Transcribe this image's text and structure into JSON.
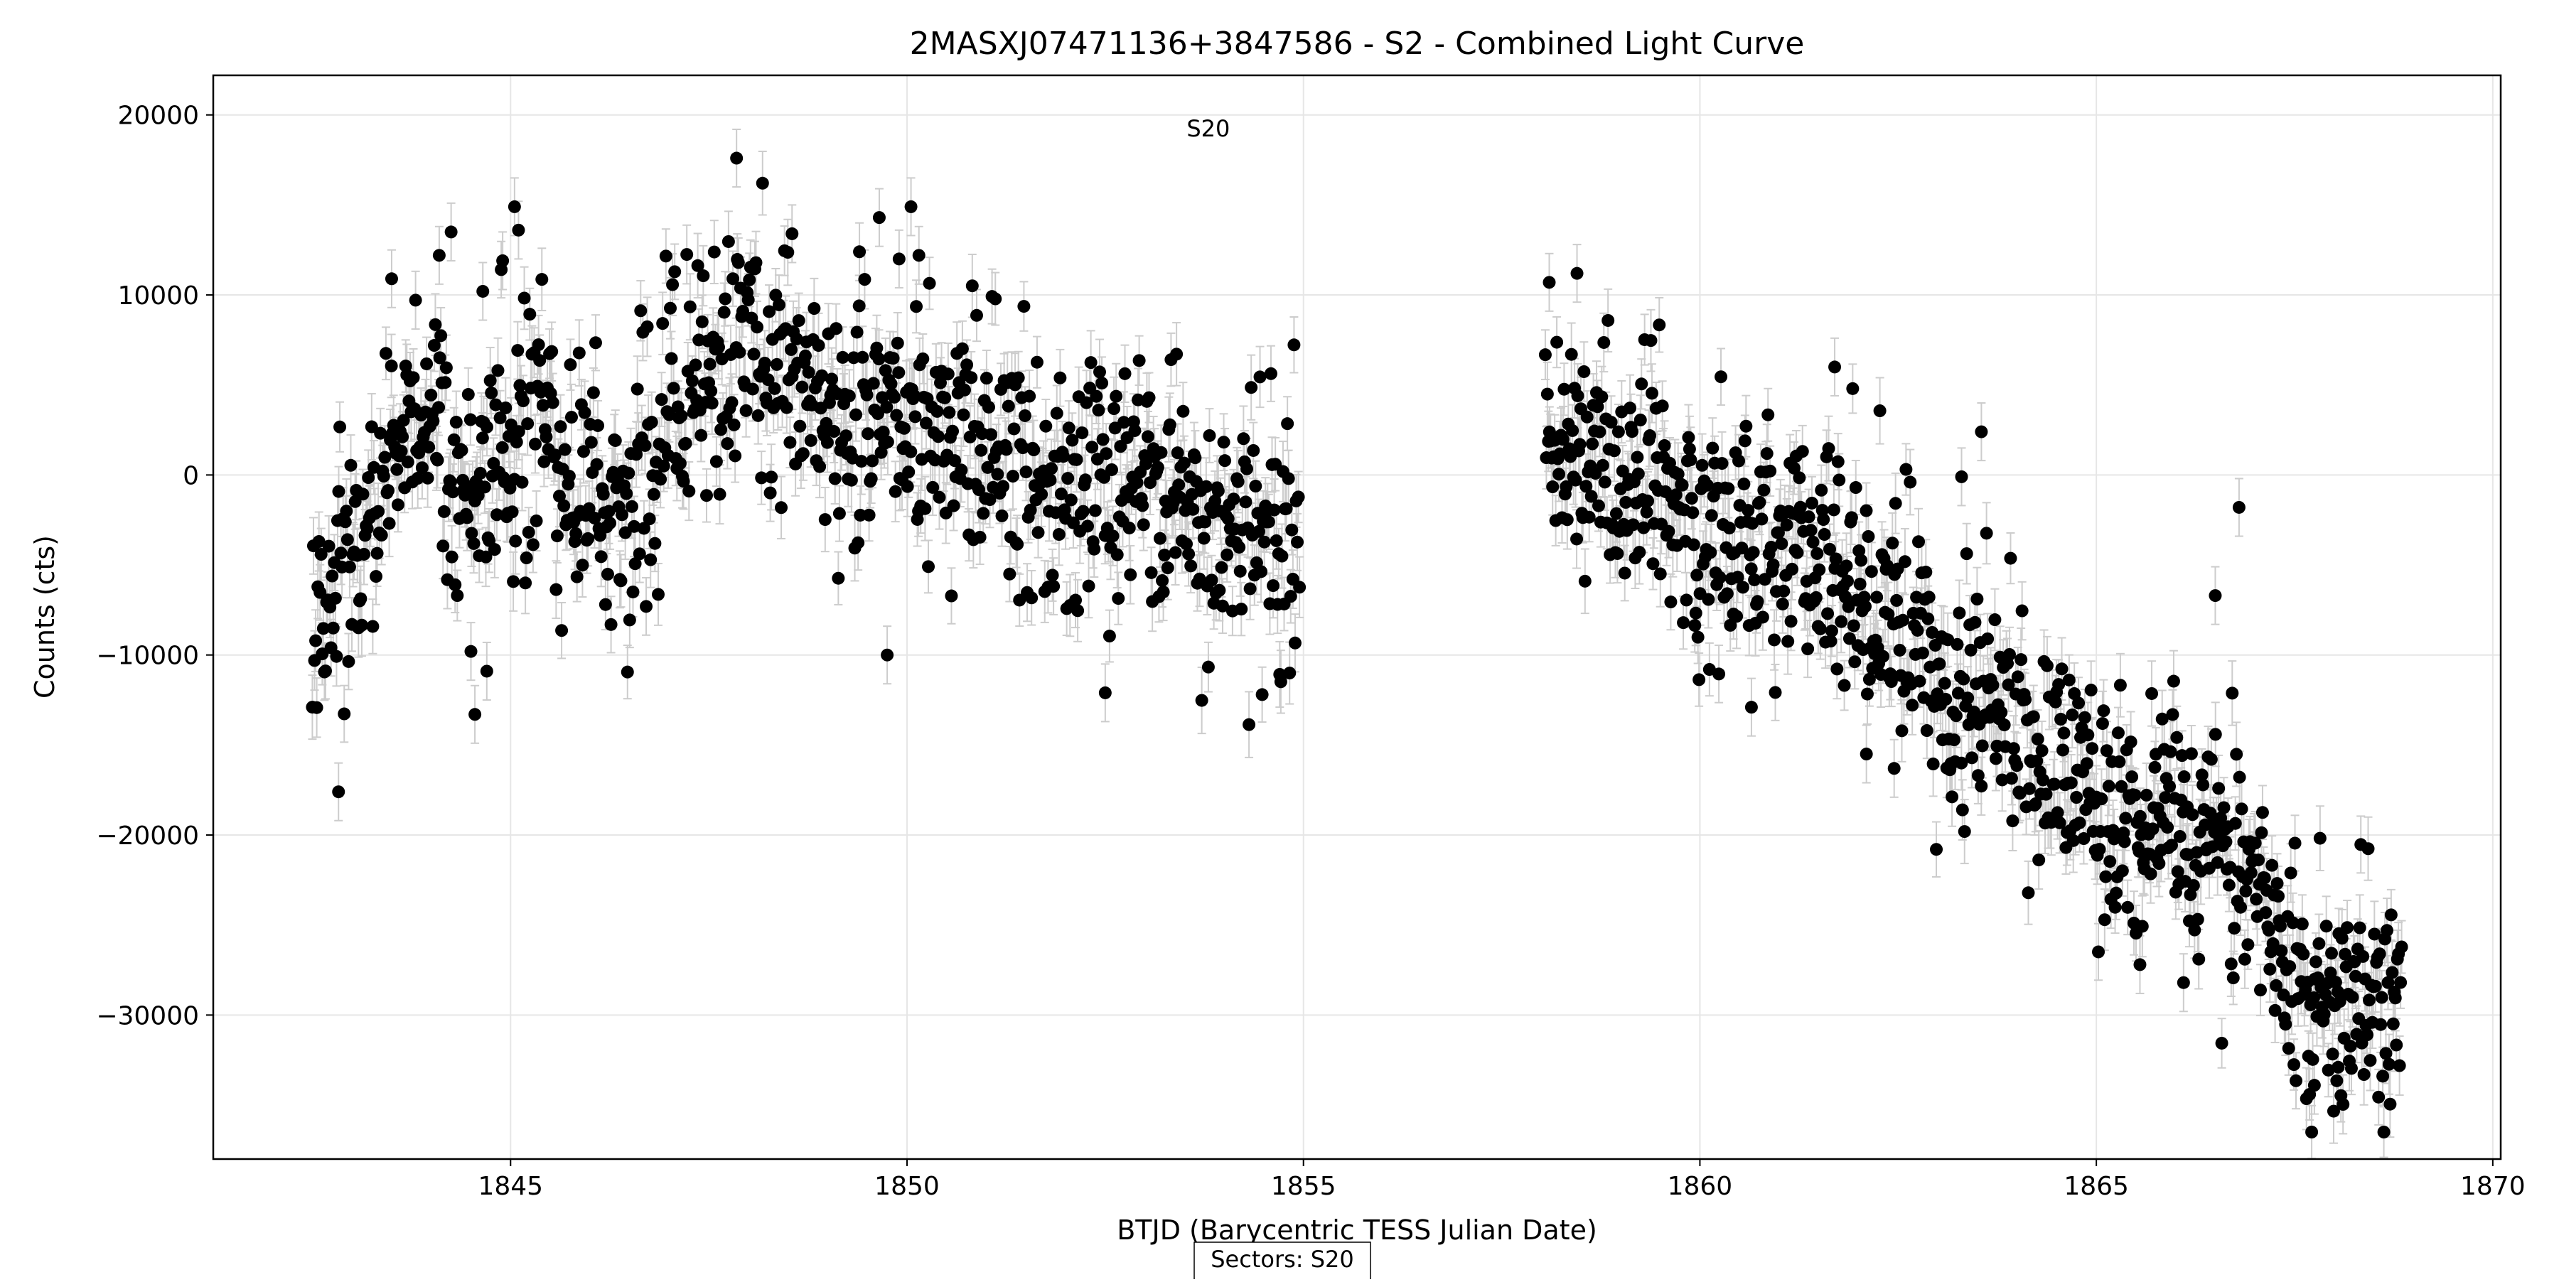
{
  "chart_data": {
    "type": "scatter",
    "title": "2MASXJ07471136+3847586 - S2 - Combined Light Curve",
    "xlabel": "BTJD (Barycentric TESS Julian Date)",
    "ylabel": "Counts (cts)",
    "xlim": [
      1841.25,
      1870.1
    ],
    "ylim": [
      -38000,
      22200
    ],
    "xticks": [
      1845,
      1850,
      1855,
      1860,
      1865,
      1870
    ],
    "yticks": [
      -30000,
      -20000,
      -10000,
      0,
      10000,
      20000
    ],
    "xtick_labels": [
      "1845",
      "1850",
      "1855",
      "1860",
      "1865",
      "1870"
    ],
    "ytick_labels": [
      "−30000",
      "−20000",
      "−10000",
      "0",
      "10000",
      "20000"
    ],
    "grid": true,
    "error_bars": true,
    "marker_color": "#000000",
    "errorbar_color": "#cccccc",
    "grid_color": "#e6e6e6",
    "annotation": {
      "text": "S20",
      "x": 1853.8,
      "y": 18800
    },
    "footer_box": "Sectors: S20",
    "series": [
      {
        "segments": [
          {
            "x_start": 1842.5,
            "x_end": 1854.95,
            "points": 900,
            "trend": [
              [
                1842.5,
                -9000
              ],
              [
                1842.8,
                -7000
              ],
              [
                1843.0,
                -4000
              ],
              [
                1843.3,
                -1500
              ],
              [
                1843.7,
                2500
              ],
              [
                1844.0,
                3000
              ],
              [
                1844.3,
                500
              ],
              [
                1844.6,
                -2000
              ],
              [
                1845.0,
                2000
              ],
              [
                1845.5,
                2500
              ],
              [
                1846.0,
                -500
              ],
              [
                1846.4,
                -3000
              ],
              [
                1846.8,
                1000
              ],
              [
                1847.2,
                4000
              ],
              [
                1847.7,
                6000
              ],
              [
                1848.3,
                7000
              ],
              [
                1848.8,
                4500
              ],
              [
                1849.3,
                1500
              ],
              [
                1849.8,
                3500
              ],
              [
                1850.3,
                2000
              ],
              [
                1850.8,
                2000
              ],
              [
                1851.3,
                1500
              ],
              [
                1851.8,
                -500
              ],
              [
                1852.3,
                -1000
              ],
              [
                1852.8,
                500
              ],
              [
                1853.3,
                -500
              ],
              [
                1853.8,
                -2500
              ],
              [
                1854.3,
                -3500
              ],
              [
                1854.95,
                -2000
              ]
            ],
            "scatter": 3600,
            "error": 1600
          },
          {
            "x_start": 1858.05,
            "x_end": 1868.85,
            "points": 820,
            "trend": [
              [
                1858.05,
                1500
              ],
              [
                1858.4,
                2500
              ],
              [
                1858.8,
                1500
              ],
              [
                1859.2,
                0
              ],
              [
                1859.6,
                -1500
              ],
              [
                1860.0,
                -3000
              ],
              [
                1860.5,
                -3500
              ],
              [
                1861.0,
                -3800
              ],
              [
                1861.5,
                -4500
              ],
              [
                1862.0,
                -6000
              ],
              [
                1862.5,
                -8500
              ],
              [
                1863.0,
                -11000
              ],
              [
                1863.5,
                -12500
              ],
              [
                1864.0,
                -14000
              ],
              [
                1864.5,
                -16000
              ],
              [
                1865.0,
                -18000
              ],
              [
                1865.5,
                -19000
              ],
              [
                1866.0,
                -19000
              ],
              [
                1866.5,
                -19500
              ],
              [
                1866.9,
                -21500
              ],
              [
                1867.3,
                -26000
              ],
              [
                1867.7,
                -28500
              ],
              [
                1868.2,
                -29500
              ],
              [
                1868.85,
                -29500
              ]
            ],
            "scatter": 3400,
            "error": 1600
          }
        ],
        "highlighted_points": [
          [
            1842.83,
            -17600
          ],
          [
            1843.5,
            10900
          ],
          [
            1844.5,
            -9800
          ],
          [
            1844.55,
            -13300
          ],
          [
            1844.7,
            -10900
          ],
          [
            1844.65,
            10200
          ],
          [
            1845.05,
            14900
          ],
          [
            1845.1,
            13600
          ],
          [
            1844.9,
            11900
          ],
          [
            1844.25,
            13500
          ],
          [
            1844.1,
            12200
          ],
          [
            1847.85,
            17600
          ],
          [
            1848.55,
            13400
          ],
          [
            1849.65,
            14300
          ],
          [
            1850.05,
            14900
          ],
          [
            1850.15,
            12200
          ],
          [
            1849.9,
            12000
          ],
          [
            1849.4,
            12400
          ],
          [
            1849.75,
            -10000
          ],
          [
            1852.5,
            -12100
          ],
          [
            1858.1,
            10700
          ],
          [
            1858.45,
            11200
          ],
          [
            1860.65,
            -12900
          ],
          [
            1863.3,
            -100
          ],
          [
            1863.55,
            2400
          ],
          [
            1861.7,
            6000
          ],
          [
            1866.8,
            -1800
          ],
          [
            1866.5,
            -6700
          ],
          [
            1862.1,
            -15500
          ],
          [
            1862.45,
            -16300
          ],
          [
            1865.55,
            -27200
          ],
          [
            1866.1,
            -28200
          ],
          [
            1867.75,
            -33900
          ],
          [
            1868.05,
            -32900
          ]
        ]
      }
    ]
  }
}
